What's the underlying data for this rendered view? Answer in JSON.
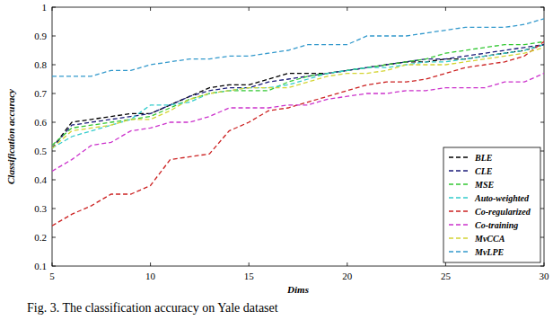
{
  "chart_data": {
    "type": "line",
    "x_label": "Dims",
    "y_label": "Classification accuracy",
    "caption": "Fig. 3. The classification accuracy on Yale dataset",
    "x": [
      5,
      6,
      7,
      8,
      9,
      10,
      11,
      12,
      13,
      14,
      15,
      16,
      17,
      18,
      19,
      20,
      21,
      22,
      23,
      24,
      25,
      26,
      27,
      28,
      29,
      30
    ],
    "xlim": [
      5,
      30
    ],
    "xticks": [
      5,
      10,
      15,
      20,
      25,
      30
    ],
    "ylim": [
      0.1,
      1
    ],
    "yticks": [
      0.1,
      0.2,
      0.3,
      0.4,
      0.5,
      0.6,
      0.7,
      0.8,
      0.9,
      {
        "value": 1,
        "label": "1"
      }
    ],
    "grid": false,
    "legend": "lower right",
    "line_style": "dashed",
    "series": [
      {
        "name": "BLE",
        "color": "#000000",
        "values": [
          0.51,
          0.6,
          0.61,
          0.62,
          0.63,
          0.63,
          0.66,
          0.69,
          0.72,
          0.73,
          0.73,
          0.75,
          0.77,
          0.77,
          0.77,
          0.78,
          0.79,
          0.8,
          0.81,
          0.81,
          0.82,
          0.82,
          0.83,
          0.84,
          0.85,
          0.87
        ]
      },
      {
        "name": "CLE",
        "color": "#1c1c7a",
        "values": [
          0.51,
          0.59,
          0.6,
          0.61,
          0.62,
          0.63,
          0.66,
          0.69,
          0.71,
          0.72,
          0.72,
          0.74,
          0.75,
          0.76,
          0.77,
          0.78,
          0.79,
          0.8,
          0.81,
          0.82,
          0.82,
          0.83,
          0.84,
          0.85,
          0.86,
          0.87
        ]
      },
      {
        "name": "MSE",
        "color": "#33c833",
        "values": [
          0.52,
          0.58,
          0.59,
          0.6,
          0.61,
          0.62,
          0.65,
          0.68,
          0.7,
          0.71,
          0.71,
          0.71,
          0.74,
          0.76,
          0.77,
          0.78,
          0.79,
          0.8,
          0.81,
          0.82,
          0.84,
          0.85,
          0.86,
          0.87,
          0.87,
          0.88
        ]
      },
      {
        "name": "Auto-weighted",
        "color": "#33cccc",
        "values": [
          0.51,
          0.55,
          0.57,
          0.59,
          0.61,
          0.66,
          0.66,
          0.67,
          0.7,
          0.71,
          0.72,
          0.72,
          0.73,
          0.75,
          0.77,
          0.78,
          0.79,
          0.79,
          0.8,
          0.81,
          0.81,
          0.82,
          0.83,
          0.84,
          0.85,
          0.87
        ]
      },
      {
        "name": "Co-regularized",
        "color": "#cc2222",
        "values": [
          0.24,
          0.28,
          0.31,
          0.35,
          0.35,
          0.38,
          0.47,
          0.48,
          0.49,
          0.57,
          0.6,
          0.64,
          0.65,
          0.67,
          0.69,
          0.71,
          0.73,
          0.74,
          0.74,
          0.75,
          0.77,
          0.79,
          0.8,
          0.81,
          0.83,
          0.88
        ]
      },
      {
        "name": "Co-training",
        "color": "#cc33cc",
        "values": [
          0.43,
          0.47,
          0.52,
          0.53,
          0.57,
          0.58,
          0.6,
          0.6,
          0.62,
          0.65,
          0.65,
          0.65,
          0.66,
          0.66,
          0.68,
          0.69,
          0.7,
          0.7,
          0.71,
          0.71,
          0.72,
          0.72,
          0.72,
          0.74,
          0.74,
          0.77
        ]
      },
      {
        "name": "MvCCA",
        "color": "#d4d433",
        "values": [
          0.51,
          0.57,
          0.58,
          0.59,
          0.61,
          0.61,
          0.64,
          0.68,
          0.7,
          0.71,
          0.72,
          0.72,
          0.72,
          0.74,
          0.76,
          0.77,
          0.77,
          0.78,
          0.8,
          0.8,
          0.8,
          0.81,
          0.82,
          0.83,
          0.84,
          0.86
        ]
      },
      {
        "name": "MvLPE",
        "color": "#3399cc",
        "values": [
          0.76,
          0.76,
          0.76,
          0.78,
          0.78,
          0.8,
          0.81,
          0.82,
          0.82,
          0.83,
          0.83,
          0.84,
          0.85,
          0.87,
          0.87,
          0.87,
          0.9,
          0.9,
          0.9,
          0.91,
          0.92,
          0.93,
          0.93,
          0.93,
          0.94,
          0.96
        ]
      }
    ]
  }
}
